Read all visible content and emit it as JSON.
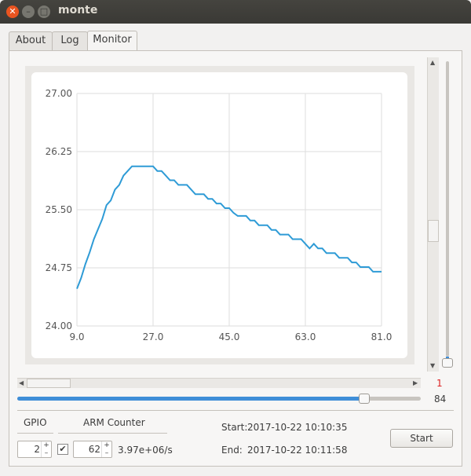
{
  "window": {
    "title": "monte"
  },
  "tabs": [
    {
      "label": "About"
    },
    {
      "label": "Log"
    },
    {
      "label": "Monitor"
    }
  ],
  "chart_data": {
    "type": "line",
    "title": "",
    "xlabel": "",
    "ylabel": "",
    "xlim": [
      9.0,
      81.0
    ],
    "ylim": [
      24.0,
      27.0
    ],
    "x_ticks": [
      "9.0",
      "27.0",
      "45.0",
      "63.0",
      "81.0"
    ],
    "y_ticks": [
      "27.00",
      "26.25",
      "25.50",
      "24.75",
      "24.00"
    ],
    "grid": true,
    "series": [
      {
        "color": "#2e9bd6",
        "x": [
          9,
          10,
          11,
          12,
          13,
          14,
          15,
          16,
          17,
          18,
          19,
          20,
          21,
          22,
          23,
          24,
          25,
          26,
          27,
          28,
          29,
          30,
          31,
          32,
          33,
          34,
          35,
          36,
          37,
          38,
          39,
          40,
          41,
          42,
          43,
          44,
          45,
          46,
          47,
          48,
          49,
          50,
          51,
          52,
          53,
          54,
          55,
          56,
          57,
          58,
          59,
          60,
          61,
          62,
          63,
          64,
          65,
          66,
          67,
          68,
          69,
          70,
          71,
          72,
          73,
          74,
          75,
          76,
          77,
          78,
          79,
          80,
          81
        ],
        "y": [
          24.48,
          24.62,
          24.8,
          24.95,
          25.12,
          25.25,
          25.38,
          25.56,
          25.62,
          25.76,
          25.82,
          25.94,
          26.0,
          26.06,
          26.06,
          26.06,
          26.06,
          26.06,
          26.06,
          26.0,
          26.0,
          25.94,
          25.88,
          25.88,
          25.82,
          25.82,
          25.82,
          25.76,
          25.7,
          25.7,
          25.7,
          25.64,
          25.64,
          25.58,
          25.58,
          25.52,
          25.52,
          25.46,
          25.42,
          25.42,
          25.42,
          25.36,
          25.36,
          25.3,
          25.3,
          25.3,
          25.24,
          25.24,
          25.18,
          25.18,
          25.18,
          25.12,
          25.12,
          25.12,
          25.06,
          25.0,
          25.06,
          25.0,
          25.0,
          24.94,
          24.94,
          24.94,
          24.88,
          24.88,
          24.88,
          24.82,
          24.82,
          24.76,
          24.76,
          24.76,
          24.7,
          24.7,
          24.7
        ]
      }
    ]
  },
  "right_slider": {
    "value": "1",
    "level": 0.0
  },
  "bottom_slider": {
    "value": "84",
    "level": 0.86
  },
  "controls": {
    "gpio_label": "GPIO",
    "arm_label": "ARM Counter",
    "gpio_value": "2",
    "arm_value": "62",
    "arm_checked": true,
    "rate": "3.97e+06/s",
    "start_label": "Start:",
    "start_time": "2017-10-22 10:10:35",
    "end_label": "End:",
    "end_time": "2017-10-22 10:11:58",
    "start_button": "Start",
    "spin_up": "+",
    "spin_down": "–",
    "check_mark": "✔"
  },
  "icons": {
    "close": "close-icon",
    "minimize": "minimize-icon",
    "maximize": "maximize-icon"
  }
}
